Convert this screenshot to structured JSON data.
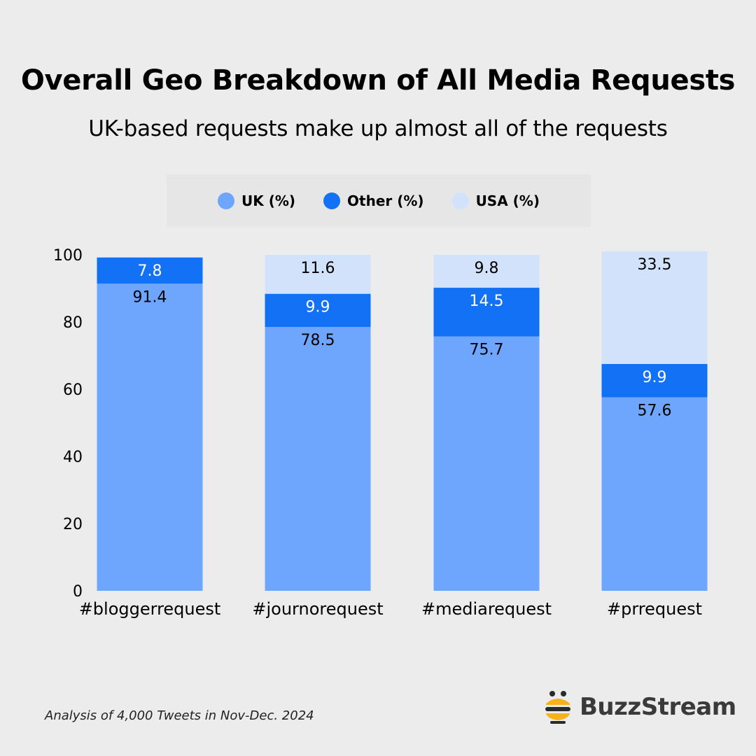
{
  "title": "Overall Geo Breakdown of All Media Requests",
  "subtitle": "UK-based requests make up almost all of the requests",
  "legend": [
    {
      "label": "UK (%)",
      "color": "#6ea6fe"
    },
    {
      "label": "Other (%)",
      "color": "#1271f5"
    },
    {
      "label": "USA (%)",
      "color": "#d2e2fb"
    }
  ],
  "footnote": "Analysis of 4,000 Tweets in Nov-Dec. 2024",
  "brand": {
    "name": "BuzzStream",
    "icon": "bee-logo-icon"
  },
  "chart_data": {
    "type": "bar",
    "stacked": true,
    "categories": [
      "#bloggerrequest",
      "#journorequest",
      "#mediarequest",
      "#prrequest"
    ],
    "series": [
      {
        "name": "UK (%)",
        "values": [
          91.4,
          78.5,
          75.7,
          57.6
        ],
        "color": "#6ea6fe",
        "label_color": "#000000"
      },
      {
        "name": "Other (%)",
        "values": [
          7.8,
          9.9,
          14.5,
          9.9
        ],
        "color": "#1271f5",
        "label_color": "#ffffff"
      },
      {
        "name": "USA (%)",
        "values": [
          0,
          11.6,
          9.8,
          33.5
        ],
        "color": "#d2e2fb",
        "label_color": "#000000"
      }
    ],
    "ylim": [
      0,
      100
    ],
    "yticks": [
      0,
      20,
      40,
      60,
      80,
      100
    ],
    "grid": false,
    "legend_position": "top"
  }
}
